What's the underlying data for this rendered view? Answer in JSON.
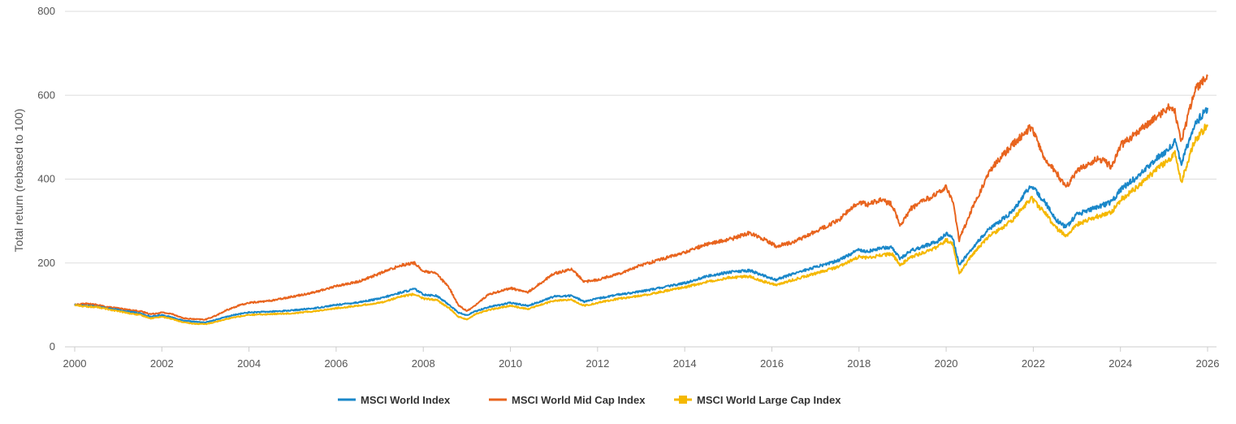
{
  "chart_data": {
    "type": "line",
    "title": "",
    "xlabel": "",
    "ylabel": "Total return (rebased to 100)",
    "xlim": [
      2000,
      2026
    ],
    "ylim": [
      0,
      800
    ],
    "yticks": [
      0,
      200,
      400,
      600,
      800
    ],
    "xticks": [
      2000,
      2002,
      2004,
      2006,
      2008,
      2010,
      2012,
      2014,
      2016,
      2018,
      2020,
      2022,
      2024,
      2026
    ],
    "legend_position": "bottom-center",
    "grid": true,
    "series": [
      {
        "name": "MSCI World Index",
        "color": "#1a87c9",
        "marker": "line",
        "x": [
          2000.0,
          2000.25,
          2000.5,
          2000.75,
          2001.0,
          2001.25,
          2001.5,
          2001.75,
          2002.0,
          2002.25,
          2002.5,
          2002.75,
          2003.0,
          2003.25,
          2003.5,
          2003.75,
          2004.0,
          2004.5,
          2005.0,
          2005.5,
          2006.0,
          2006.5,
          2007.0,
          2007.5,
          2007.8,
          2008.0,
          2008.3,
          2008.6,
          2008.8,
          2009.0,
          2009.2,
          2009.5,
          2010.0,
          2010.4,
          2010.6,
          2011.0,
          2011.4,
          2011.7,
          2012.0,
          2012.5,
          2013.0,
          2013.5,
          2014.0,
          2014.5,
          2015.0,
          2015.5,
          2015.8,
          2016.1,
          2016.5,
          2017.0,
          2017.5,
          2018.0,
          2018.2,
          2018.5,
          2018.75,
          2018.95,
          2019.2,
          2019.5,
          2019.8,
          2020.0,
          2020.15,
          2020.3,
          2020.6,
          2021.0,
          2021.5,
          2021.95,
          2022.3,
          2022.5,
          2022.75,
          2023.0,
          2023.5,
          2023.8,
          2024.0,
          2024.5,
          2024.9,
          2025.1,
          2025.25,
          2025.4,
          2025.7,
          2026.0
        ],
        "values": [
          100,
          98,
          97,
          92,
          88,
          84,
          80,
          72,
          76,
          70,
          62,
          60,
          58,
          65,
          72,
          78,
          82,
          84,
          87,
          92,
          100,
          106,
          115,
          130,
          138,
          125,
          122,
          100,
          82,
          75,
          85,
          95,
          105,
          98,
          105,
          120,
          122,
          108,
          115,
          125,
          132,
          142,
          152,
          168,
          178,
          182,
          170,
          160,
          175,
          190,
          205,
          232,
          228,
          235,
          238,
          210,
          230,
          240,
          252,
          270,
          260,
          195,
          235,
          282,
          320,
          385,
          340,
          305,
          285,
          315,
          335,
          345,
          375,
          415,
          455,
          470,
          490,
          440,
          530,
          570
        ]
      },
      {
        "name": "MSCI World Mid Cap Index",
        "color": "#e8641e",
        "marker": "line",
        "x": [
          2000.0,
          2000.25,
          2000.5,
          2000.75,
          2001.0,
          2001.25,
          2001.5,
          2001.75,
          2002.0,
          2002.25,
          2002.5,
          2002.75,
          2003.0,
          2003.25,
          2003.5,
          2003.75,
          2004.0,
          2004.5,
          2005.0,
          2005.5,
          2006.0,
          2006.5,
          2007.0,
          2007.5,
          2007.8,
          2008.0,
          2008.3,
          2008.6,
          2008.8,
          2009.0,
          2009.2,
          2009.5,
          2010.0,
          2010.4,
          2010.6,
          2011.0,
          2011.4,
          2011.7,
          2012.0,
          2012.5,
          2013.0,
          2013.5,
          2014.0,
          2014.5,
          2015.0,
          2015.5,
          2015.8,
          2016.1,
          2016.5,
          2017.0,
          2017.5,
          2018.0,
          2018.2,
          2018.5,
          2018.75,
          2018.95,
          2019.2,
          2019.5,
          2019.8,
          2020.0,
          2020.15,
          2020.3,
          2020.6,
          2021.0,
          2021.5,
          2021.95,
          2022.3,
          2022.5,
          2022.75,
          2023.0,
          2023.5,
          2023.8,
          2024.0,
          2024.5,
          2024.9,
          2025.1,
          2025.25,
          2025.4,
          2025.7,
          2026.0
        ],
        "values": [
          100,
          103,
          100,
          95,
          92,
          88,
          85,
          78,
          82,
          78,
          68,
          66,
          65,
          75,
          88,
          98,
          105,
          110,
          120,
          130,
          145,
          155,
          175,
          195,
          200,
          180,
          175,
          140,
          100,
          85,
          100,
          125,
          140,
          130,
          145,
          175,
          185,
          155,
          160,
          175,
          195,
          210,
          225,
          245,
          255,
          272,
          258,
          240,
          250,
          275,
          300,
          345,
          340,
          350,
          340,
          290,
          330,
          350,
          365,
          380,
          350,
          255,
          330,
          420,
          480,
          525,
          440,
          420,
          380,
          420,
          450,
          430,
          480,
          520,
          555,
          570,
          560,
          490,
          610,
          645
        ]
      },
      {
        "name": "MSCI World Large Cap Index",
        "color": "#f5b800",
        "marker": "square",
        "x": [
          2000.0,
          2000.25,
          2000.5,
          2000.75,
          2001.0,
          2001.25,
          2001.5,
          2001.75,
          2002.0,
          2002.25,
          2002.5,
          2002.75,
          2003.0,
          2003.25,
          2003.5,
          2003.75,
          2004.0,
          2004.5,
          2005.0,
          2005.5,
          2006.0,
          2006.5,
          2007.0,
          2007.5,
          2007.8,
          2008.0,
          2008.3,
          2008.6,
          2008.8,
          2009.0,
          2009.2,
          2009.5,
          2010.0,
          2010.4,
          2010.6,
          2011.0,
          2011.4,
          2011.7,
          2012.0,
          2012.5,
          2013.0,
          2013.5,
          2014.0,
          2014.5,
          2015.0,
          2015.5,
          2015.8,
          2016.1,
          2016.5,
          2017.0,
          2017.5,
          2018.0,
          2018.2,
          2018.5,
          2018.75,
          2018.95,
          2019.2,
          2019.5,
          2019.8,
          2020.0,
          2020.15,
          2020.3,
          2020.6,
          2021.0,
          2021.5,
          2021.95,
          2022.3,
          2022.5,
          2022.75,
          2023.0,
          2023.5,
          2023.8,
          2024.0,
          2024.5,
          2024.9,
          2025.1,
          2025.25,
          2025.4,
          2025.7,
          2026.0
        ],
        "values": [
          100,
          96,
          95,
          90,
          85,
          80,
          76,
          68,
          72,
          66,
          58,
          55,
          54,
          60,
          67,
          72,
          76,
          78,
          80,
          85,
          92,
          98,
          105,
          120,
          126,
          115,
          112,
          92,
          72,
          65,
          78,
          88,
          98,
          90,
          97,
          110,
          112,
          98,
          105,
          115,
          122,
          132,
          142,
          155,
          165,
          168,
          156,
          148,
          160,
          175,
          190,
          215,
          212,
          218,
          222,
          195,
          215,
          225,
          238,
          255,
          245,
          175,
          220,
          265,
          300,
          355,
          315,
          285,
          265,
          292,
          312,
          322,
          350,
          390,
          430,
          445,
          460,
          395,
          490,
          530
        ]
      }
    ]
  }
}
